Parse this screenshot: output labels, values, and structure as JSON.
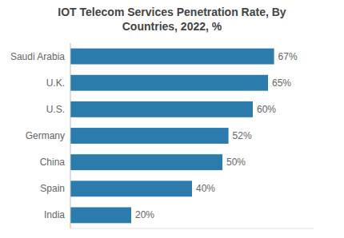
{
  "chart_data": {
    "type": "bar",
    "orientation": "horizontal",
    "title": "IOT Telecom Services Penetration Rate, By\nCountries, 2022, %",
    "categories": [
      "Saudi Arabia",
      "U.K.",
      "U.S.",
      "Germany",
      "China",
      "Spain",
      "India"
    ],
    "values": [
      67,
      65,
      60,
      52,
      50,
      40,
      20
    ],
    "value_labels": [
      "67%",
      "65%",
      "60%",
      "52%",
      "50%",
      "40%",
      "20%"
    ],
    "data_labels": true,
    "color": "#2b7bac",
    "xlim": [
      0,
      80
    ],
    "tick_labels": "y",
    "grid": false
  }
}
